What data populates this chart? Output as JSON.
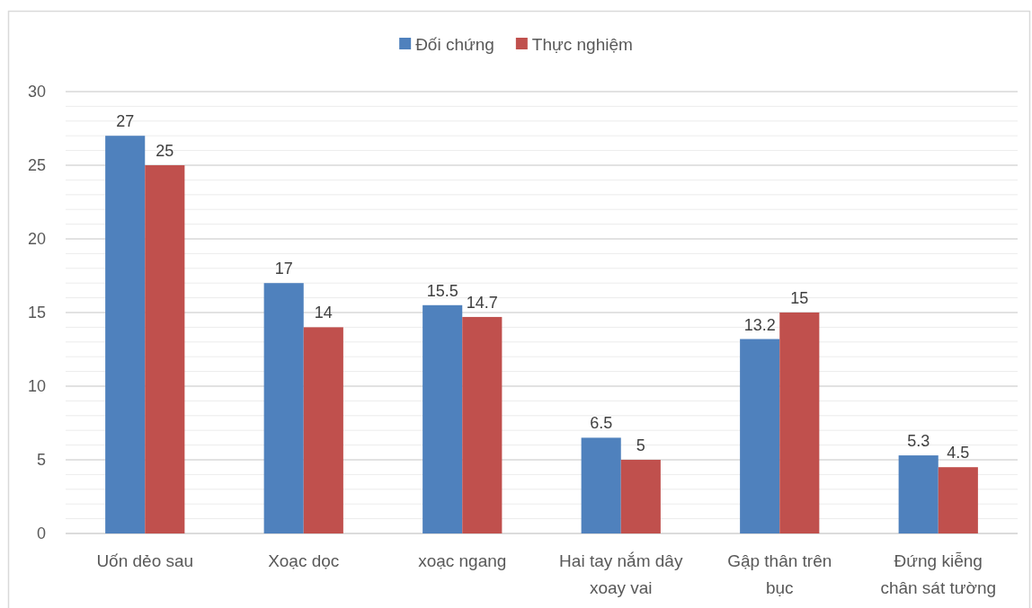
{
  "chart_data": {
    "type": "bar",
    "categories": [
      "Uốn dẻo sau",
      "Xoạc dọc",
      "xoạc ngang",
      "Hai tay nắm dây xoay vai",
      "Gập thân trên bục",
      "Đứng kiễng chân sát tường"
    ],
    "series": [
      {
        "name": "Đối chứng",
        "color": "#4f81bd",
        "values": [
          27,
          17,
          15.5,
          6.5,
          13.2,
          5.3
        ]
      },
      {
        "name": "Thực nghiệm",
        "color": "#c0504d",
        "values": [
          25,
          14,
          14.7,
          5,
          15,
          4.5
        ]
      }
    ],
    "ylim": [
      0,
      30
    ],
    "yticks": [
      0,
      {
        "value": 1,
        "label": null
      },
      {
        "value": 2,
        "label": null
      },
      {
        "value": 3,
        "label": null
      },
      {
        "value": 4,
        "label": null
      },
      5,
      {
        "value": 6,
        "label": null
      },
      {
        "value": 7,
        "label": null
      },
      {
        "value": 8,
        "label": null
      },
      {
        "value": 9,
        "label": null
      },
      10,
      {
        "value": 11,
        "label": null
      },
      {
        "value": 12,
        "label": null
      },
      {
        "value": 13,
        "label": null
      },
      {
        "value": 14,
        "label": null
      },
      15,
      {
        "value": 16,
        "label": null
      },
      {
        "value": 17,
        "label": null
      },
      {
        "value": 18,
        "label": null
      },
      {
        "value": 19,
        "label": null
      },
      20,
      {
        "value": 21,
        "label": null
      },
      {
        "value": 22,
        "label": null
      },
      {
        "value": 23,
        "label": null
      },
      {
        "value": 24,
        "label": null
      },
      25,
      {
        "value": 26,
        "label": null
      },
      {
        "value": 27,
        "label": null
      },
      {
        "value": 28,
        "label": null
      },
      {
        "value": 29,
        "label": null
      },
      30
    ],
    "grid": "y",
    "legend": "top",
    "data_labels": true
  }
}
